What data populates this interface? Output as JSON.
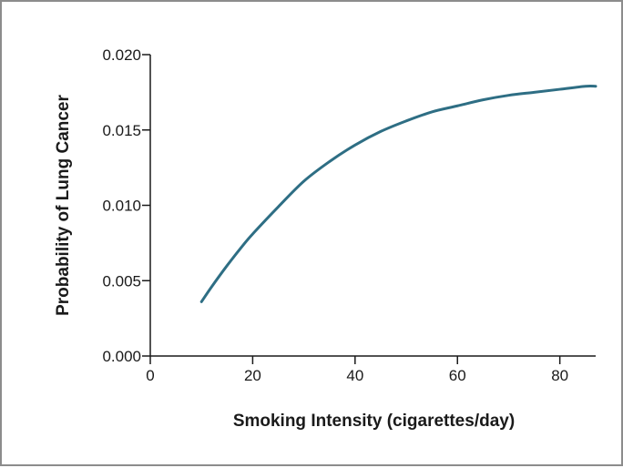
{
  "chart_data": {
    "type": "line",
    "title": "",
    "xlabel": "Smoking Intensity (cigarettes/day)",
    "ylabel": "Probability of Lung Cancer",
    "xlim": [
      0,
      87
    ],
    "ylim": [
      0,
      0.02
    ],
    "x_ticks": [
      0,
      20,
      40,
      60,
      80
    ],
    "x_tick_labels": [
      "0",
      "20",
      "40",
      "60",
      "80"
    ],
    "y_ticks": [
      0,
      0.005,
      0.01,
      0.015,
      0.02
    ],
    "y_tick_labels": [
      "0.000",
      "0.005",
      "0.010",
      "0.015",
      "0.020"
    ],
    "grid": false,
    "line_color": "#2e6e84",
    "series": [
      {
        "x": [
          10,
          12,
          15,
          18,
          20,
          25,
          30,
          35,
          40,
          45,
          50,
          55,
          60,
          65,
          70,
          75,
          80,
          85,
          87
        ],
        "y": [
          0.0036,
          0.0046,
          0.006,
          0.0073,
          0.0081,
          0.0099,
          0.0116,
          0.0129,
          0.014,
          0.0149,
          0.0156,
          0.0162,
          0.0166,
          0.017,
          0.0173,
          0.0175,
          0.0177,
          0.0179,
          0.0179
        ]
      }
    ]
  }
}
